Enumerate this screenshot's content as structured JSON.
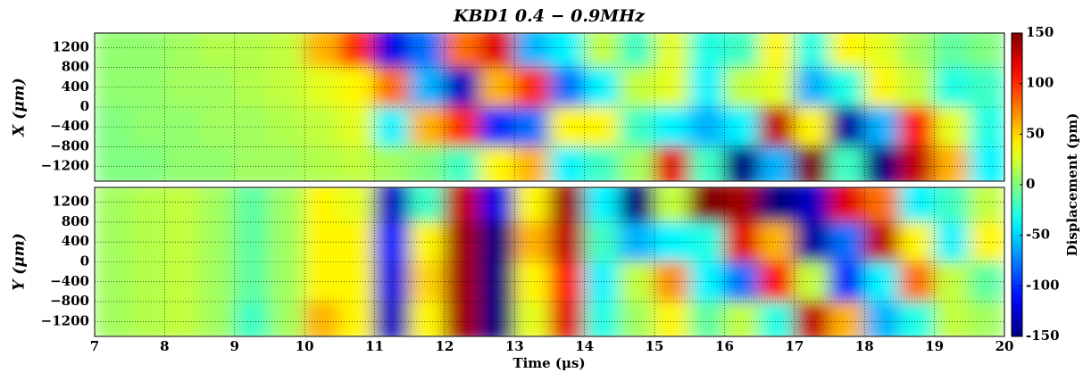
{
  "chart_data": {
    "type": "heatmap",
    "title": "KBD1   0.4 − 0.9MHz",
    "xlabel": "Time (μs)",
    "colormap": "jet",
    "grid": true,
    "xlim": [
      7,
      20
    ],
    "xticks": [
      7,
      8,
      9,
      10,
      11,
      12,
      13,
      14,
      15,
      16,
      17,
      18,
      19,
      20
    ],
    "x": [
      7.25,
      7.75,
      8.25,
      8.75,
      9.25,
      9.75,
      10.25,
      10.75,
      11.25,
      11.75,
      12.25,
      12.75,
      13.25,
      13.75,
      14.25,
      14.75,
      15.25,
      15.75,
      16.25,
      16.75,
      17.25,
      17.75,
      18.25,
      18.75,
      19.25,
      19.75
    ],
    "panels": [
      {
        "ylabel": "X (μm)",
        "ylim": [
          -1500,
          1500
        ],
        "yticks": [
          {
            "value": -1200,
            "label": "−1200"
          },
          {
            "value": -800,
            "label": "−800"
          },
          {
            "value": -400,
            "label": "−400"
          },
          0,
          400,
          800,
          1200
        ],
        "y": [
          1200,
          400,
          -400,
          -1200
        ],
        "values": [
          [
            5,
            5,
            10,
            15,
            15,
            20,
            60,
            100,
            -120,
            -80,
            80,
            120,
            -60,
            -40,
            20,
            -20,
            30,
            -30,
            -20,
            40,
            -30,
            40,
            30,
            10,
            -10,
            0
          ],
          [
            5,
            5,
            10,
            10,
            15,
            20,
            30,
            40,
            80,
            -60,
            -130,
            60,
            100,
            -80,
            -40,
            20,
            30,
            -40,
            20,
            30,
            -60,
            -30,
            40,
            20,
            -30,
            -20
          ],
          [
            0,
            5,
            5,
            10,
            10,
            15,
            20,
            30,
            -40,
            60,
            100,
            -100,
            -80,
            40,
            40,
            -20,
            -40,
            -60,
            -40,
            130,
            40,
            -140,
            -60,
            110,
            30,
            -30
          ],
          [
            0,
            0,
            5,
            5,
            10,
            10,
            15,
            20,
            10,
            0,
            -20,
            40,
            60,
            -40,
            -20,
            10,
            120,
            -20,
            -150,
            -60,
            150,
            -20,
            -150,
            130,
            60,
            -40
          ]
        ]
      },
      {
        "ylabel": "Y (μm)",
        "ylim": [
          -1500,
          1500
        ],
        "yticks": [
          {
            "value": -1200,
            "label": "−1200"
          },
          {
            "value": -800,
            "label": "−800"
          },
          {
            "value": -400,
            "label": "−400"
          },
          0,
          400,
          800,
          1200
        ],
        "y": [
          1200,
          400,
          -400,
          -1200
        ],
        "values": [
          [
            10,
            15,
            20,
            10,
            -10,
            10,
            40,
            30,
            -130,
            -20,
            130,
            -120,
            40,
            140,
            -40,
            -150,
            20,
            150,
            140,
            -150,
            -130,
            120,
            80,
            -40,
            -20,
            20
          ],
          [
            10,
            15,
            20,
            10,
            -10,
            10,
            40,
            40,
            -110,
            40,
            140,
            -150,
            60,
            130,
            -20,
            -60,
            -40,
            -30,
            120,
            60,
            -140,
            -80,
            130,
            40,
            -40,
            40
          ],
          [
            10,
            15,
            20,
            10,
            -10,
            10,
            40,
            40,
            -120,
            50,
            140,
            -150,
            40,
            110,
            -40,
            20,
            70,
            -40,
            -80,
            110,
            20,
            -100,
            -40,
            80,
            20,
            -10
          ],
          [
            10,
            15,
            20,
            10,
            -20,
            10,
            60,
            40,
            -130,
            40,
            140,
            -150,
            30,
            120,
            -30,
            10,
            40,
            -10,
            20,
            -30,
            130,
            60,
            -60,
            -30,
            20,
            10
          ]
        ]
      }
    ],
    "colorbar": {
      "label": "Displacement (pm)",
      "lim": [
        -150,
        150
      ],
      "ticks": [
        -150,
        -100,
        -50,
        0,
        50,
        100,
        150
      ]
    }
  }
}
